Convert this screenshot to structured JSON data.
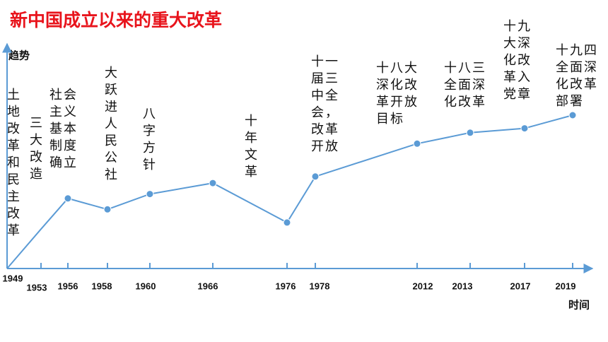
{
  "chart_data": {
    "type": "line",
    "title": "新中国成立以来的重大改革",
    "y_label": "趋势",
    "x_label": "时间",
    "categories": [
      "1949",
      "1953",
      "1956",
      "1958",
      "1960",
      "1966",
      "1976",
      "1978",
      "2012",
      "2013",
      "2017",
      "2019"
    ],
    "values": [
      0,
      18,
      32,
      27,
      34,
      39,
      21,
      42,
      57,
      62,
      64,
      70
    ],
    "markers": [
      false,
      false,
      true,
      true,
      true,
      true,
      true,
      true,
      true,
      true,
      true,
      true
    ],
    "ylim": [
      0,
      100
    ],
    "color": "#5b9bd5",
    "annotations": [
      [
        "土",
        "地",
        "改",
        "革",
        "和",
        "民",
        "主",
        "改",
        "革"
      ],
      [
        "三",
        "大",
        "改",
        "造"
      ],
      [
        "社会",
        "主义",
        "基本",
        "制度",
        "确立"
      ],
      [
        "大",
        "跃",
        "进",
        "人",
        "民",
        "公",
        "社"
      ],
      [
        "八",
        "字",
        "方",
        "针"
      ],
      null,
      [
        "十",
        "年",
        "文",
        "革"
      ],
      [
        "十一",
        "届三",
        "中全",
        "会，",
        "改革",
        "开放"
      ],
      [
        "十八大",
        "深化改",
        "革开放",
        "目标"
      ],
      [
        "十八三",
        "全面深",
        "化改革"
      ],
      [
        "十九",
        "大深",
        "化改",
        "革入",
        "党章"
      ],
      [
        "十九四",
        "全面深",
        "化改革",
        "部署"
      ]
    ]
  }
}
